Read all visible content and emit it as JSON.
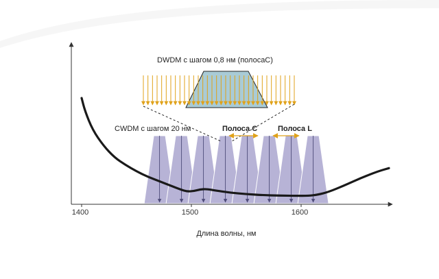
{
  "chart_data": {
    "type": "diagram",
    "xlabel": "Длина волны, нм",
    "xlim": [
      1390,
      1680
    ],
    "x_ticks": [
      1400,
      1500,
      1600
    ],
    "attenuation_curve": [
      [
        1400,
        5.0
      ],
      [
        1403,
        4.4
      ],
      [
        1410,
        3.5
      ],
      [
        1420,
        2.75
      ],
      [
        1430,
        2.2
      ],
      [
        1440,
        1.85
      ],
      [
        1450,
        1.55
      ],
      [
        1460,
        1.3
      ],
      [
        1470,
        1.1
      ],
      [
        1480,
        0.9
      ],
      [
        1490,
        0.7
      ],
      [
        1496,
        0.6
      ],
      [
        1502,
        0.62
      ],
      [
        1508,
        0.7
      ],
      [
        1514,
        0.72
      ],
      [
        1522,
        0.65
      ],
      [
        1535,
        0.55
      ],
      [
        1550,
        0.48
      ],
      [
        1565,
        0.43
      ],
      [
        1580,
        0.41
      ],
      [
        1595,
        0.4
      ],
      [
        1607,
        0.4
      ],
      [
        1615,
        0.45
      ],
      [
        1625,
        0.58
      ],
      [
        1640,
        0.9
      ],
      [
        1655,
        1.25
      ],
      [
        1670,
        1.55
      ],
      [
        1680,
        1.7
      ]
    ],
    "cwdm": {
      "label": "CWDM с шагом 20 нм",
      "channels": [
        1471,
        1491,
        1511,
        1531,
        1551,
        1571,
        1591,
        1611
      ],
      "spacing_nm": 20,
      "color": "#b7b3d6"
    },
    "dwdm": {
      "label": "DWDM с шагом 0,8 нм (полосаС)",
      "channel_count": 34,
      "filter_color": "#a9cbd6",
      "arrow_color": "#e0a21a"
    },
    "bands": [
      {
        "label": "Полоса С",
        "from": 1530,
        "to": 1565
      },
      {
        "label": "Полоса L",
        "from": 1570,
        "to": 1605
      }
    ],
    "colors": {
      "curve": "#1a1a1a",
      "axis": "#333333",
      "band_arrow": "#e0a21a",
      "channel_arrow": "#4d4a78"
    }
  }
}
